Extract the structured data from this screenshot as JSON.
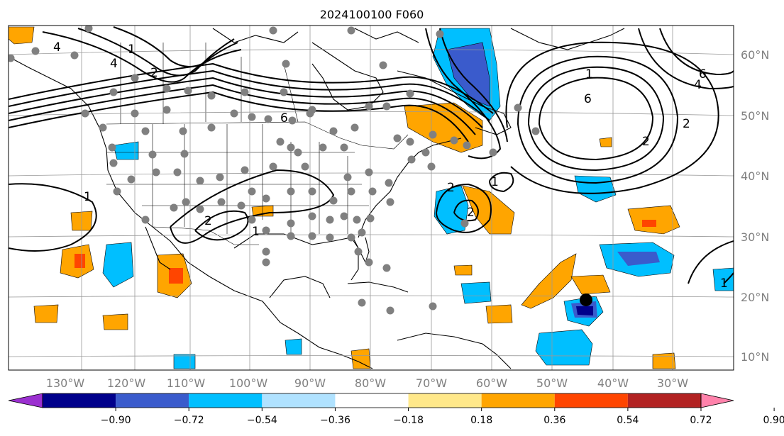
{
  "title": "2024100100 F060",
  "lon_labels": [
    "130°W",
    "120°W",
    "110°W",
    "100°W",
    "90°W",
    "80°W",
    "70°W",
    "60°W",
    "50°W",
    "40°W",
    "30°W"
  ],
  "lat_labels": [
    "60°N",
    "50°N",
    "40°N",
    "30°N",
    "20°N",
    "10°N"
  ],
  "colorbar": {
    "labels": [
      "−0.90",
      "−0.72",
      "−0.54",
      "−0.36",
      "−0.18",
      "0.18",
      "0.36",
      "0.54",
      "0.72",
      "0.90"
    ],
    "colors": [
      "#9b30d0",
      "#00008b",
      "#3a5bcc",
      "#00bfff",
      "#b0e2ff",
      "#ffffff",
      "#ffe88a",
      "#ffa500",
      "#ff4500",
      "#b22222",
      "#ff82ab"
    ]
  },
  "contour_labels": [
    "1",
    "2",
    "4",
    "6",
    "2",
    "1",
    "6",
    "4",
    "2",
    "1",
    "2",
    "1",
    "6",
    "4",
    "2",
    "2",
    "1",
    "1"
  ]
}
